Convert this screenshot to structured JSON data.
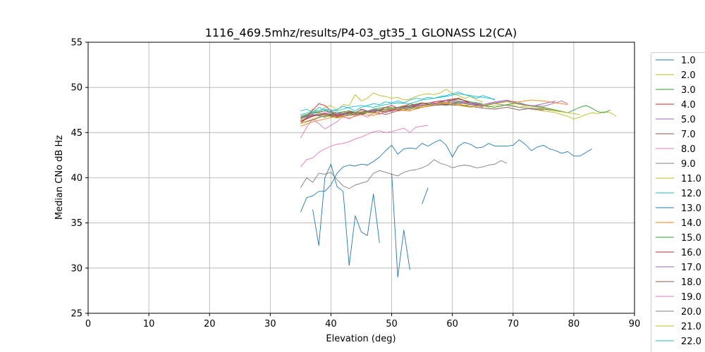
{
  "chart_data": {
    "type": "line",
    "title": "1116_469.5mhz/results/P4-03_gt35_1 GLONASS L2(CA)",
    "xlabel": "Elevation (deg)",
    "ylabel": "Median CNo dB Hz",
    "xlim": [
      0,
      90
    ],
    "ylim": [
      25,
      55
    ],
    "xticks": [
      0,
      10,
      20,
      30,
      40,
      50,
      60,
      70,
      80,
      90
    ],
    "yticks": [
      25,
      30,
      35,
      40,
      45,
      50,
      55
    ],
    "grid": true,
    "legend_position": "right (clipped at bottom)",
    "series": [
      {
        "name": "1.0",
        "color": "#1f77b4",
        "x": [
          35,
          36,
          37,
          38,
          39,
          40,
          41,
          42,
          43,
          44,
          45,
          46,
          47,
          48,
          49,
          50,
          51,
          52,
          53,
          54,
          55,
          56,
          57,
          58,
          59,
          60,
          61,
          62,
          63,
          64,
          65,
          66,
          67,
          68,
          69,
          70,
          71,
          72,
          73,
          74,
          75,
          76,
          77,
          78,
          79,
          80,
          81,
          82,
          83
        ],
        "y": [
          36.2,
          37.8,
          38.0,
          38.5,
          38.5,
          39.2,
          40.5,
          41.2,
          41.4,
          41.3,
          41.5,
          41.4,
          41.8,
          42.3,
          43.0,
          43.6,
          42.6,
          43.2,
          43.3,
          43.2,
          43.8,
          43.5,
          43.9,
          44.2,
          43.6,
          42.3,
          43.5,
          43.9,
          43.7,
          43.3,
          43.4,
          43.8,
          43.5,
          43.5,
          43.5,
          43.6,
          44.2,
          43.7,
          43.0,
          43.4,
          43.6,
          43.2,
          43.0,
          42.7,
          42.9,
          42.4,
          42.4,
          42.8,
          43.2
        ]
      },
      {
        "name": "2.0",
        "color": "#bcbd22",
        "x": [
          35,
          36,
          37,
          38,
          39,
          40,
          41,
          42,
          43,
          44,
          45,
          46,
          47,
          48,
          49,
          50,
          51,
          52,
          53,
          54,
          55,
          56,
          57,
          58,
          59,
          60,
          61,
          62,
          63,
          64,
          65,
          66,
          67,
          68,
          69,
          70,
          71,
          72,
          73,
          74,
          75,
          76,
          77,
          78,
          79,
          80,
          81,
          82,
          83,
          84,
          85,
          86,
          87
        ],
        "y": [
          46.5,
          47.0,
          46.8,
          47.2,
          47.0,
          46.8,
          47.0,
          47.3,
          47.1,
          46.9,
          47.2,
          47.4,
          47.6,
          47.5,
          47.8,
          47.6,
          47.8,
          48.0,
          47.9,
          48.1,
          48.0,
          48.2,
          48.1,
          48.3,
          48.2,
          48.4,
          48.2,
          48.0,
          48.1,
          48.2,
          48.0,
          47.8,
          48.0,
          47.9,
          48.1,
          48.0,
          47.8,
          47.9,
          47.6,
          47.5,
          47.4,
          47.3,
          47.2,
          47.0,
          46.8,
          46.5,
          46.7,
          47.0,
          47.2,
          47.1,
          47.3,
          47.2,
          46.8
        ]
      },
      {
        "name": "3.0",
        "color": "#2ca02c",
        "x": [
          35,
          37,
          39,
          41,
          43,
          45,
          47,
          49,
          51,
          53,
          55,
          57,
          59,
          61,
          63,
          65,
          67,
          69,
          71,
          73,
          75,
          77,
          79,
          81,
          82,
          83,
          84,
          85,
          86
        ],
        "y": [
          46.8,
          47.2,
          47.4,
          47.0,
          47.1,
          47.3,
          47.5,
          47.4,
          47.6,
          47.8,
          48.0,
          48.2,
          48.1,
          48.4,
          48.2,
          48.0,
          47.8,
          48.1,
          48.3,
          47.9,
          47.8,
          47.5,
          47.2,
          47.8,
          48.0,
          47.7,
          47.3,
          47.2,
          47.5
        ]
      },
      {
        "name": "4.0",
        "color": "#d62728",
        "x": [
          35,
          37,
          39,
          41,
          43,
          45,
          47,
          49,
          51,
          53,
          55,
          57,
          59,
          61,
          63,
          65
        ],
        "y": [
          46.2,
          46.8,
          47.1,
          46.9,
          47.3,
          47.2,
          47.5,
          47.3,
          47.7,
          47.9,
          48.0,
          48.2,
          48.6,
          48.8,
          48.3,
          48.0
        ]
      },
      {
        "name": "5.0",
        "color": "#9467bd",
        "x": [
          35,
          37,
          39,
          41,
          43,
          45,
          47,
          49,
          51,
          53,
          55,
          57,
          59,
          61,
          63,
          65,
          67,
          69,
          71,
          73,
          75,
          77,
          78,
          79
        ],
        "y": [
          46.5,
          46.9,
          47.2,
          47.0,
          47.3,
          47.1,
          47.5,
          47.6,
          47.8,
          48.0,
          48.2,
          48.4,
          48.6,
          48.5,
          48.3,
          48.1,
          48.4,
          48.6,
          48.2,
          48.0,
          47.9,
          48.3,
          48.5,
          48.2
        ]
      },
      {
        "name": "7.0",
        "color": "#8c564b",
        "x": [
          35,
          37,
          39,
          41,
          43,
          45,
          47,
          49,
          51,
          53,
          55,
          57,
          59,
          61,
          63,
          65
        ],
        "y": [
          46.0,
          46.4,
          46.9,
          46.7,
          46.9,
          47.1,
          47.3,
          47.0,
          47.4,
          47.6,
          47.8,
          48.0,
          48.1,
          48.3,
          48.1,
          47.9
        ]
      },
      {
        "name": "8.0",
        "color": "#e377c2",
        "x": [
          35,
          36,
          37,
          38,
          39,
          40,
          41,
          42,
          43,
          44,
          45,
          46,
          47,
          48,
          49,
          50,
          51,
          52,
          53,
          54,
          55,
          56
        ],
        "y": [
          41.2,
          42.0,
          42.2,
          42.8,
          43.2,
          43.5,
          43.7,
          43.8,
          44.0,
          44.3,
          44.5,
          44.8,
          45.1,
          45.2,
          45.0,
          45.1,
          45.3,
          45.5,
          45.0,
          45.6,
          45.7,
          45.8
        ]
      },
      {
        "name": "9.0",
        "color": "#7f7f7f",
        "x": [
          35,
          36,
          37,
          38,
          39,
          40,
          41,
          42,
          43,
          44,
          45,
          46,
          47,
          48,
          49,
          50,
          51,
          52,
          53,
          54,
          55,
          56,
          57,
          58,
          59,
          60,
          61,
          62,
          63,
          64,
          65,
          66,
          67,
          68,
          69
        ],
        "y": [
          38.9,
          40.0,
          39.5,
          40.5,
          40.4,
          40.6,
          39.8,
          39.1,
          38.8,
          39.2,
          39.4,
          39.6,
          40.5,
          40.8,
          40.6,
          40.4,
          40.2,
          40.6,
          40.8,
          40.9,
          41.1,
          41.4,
          42.0,
          41.6,
          41.4,
          41.1,
          41.3,
          41.4,
          41.3,
          41.1,
          41.2,
          41.4,
          41.5,
          41.9,
          41.6
        ]
      },
      {
        "name": "11.0",
        "color": "#bcbd22",
        "x": [
          35,
          36,
          37,
          38,
          39,
          40,
          41,
          42,
          43,
          44,
          45,
          46,
          47,
          48,
          49,
          50,
          51,
          52,
          53,
          54,
          55,
          56,
          57,
          58,
          59,
          60,
          61,
          62,
          63,
          64,
          65
        ],
        "y": [
          46.4,
          46.9,
          47.6,
          47.2,
          47.8,
          48.0,
          47.5,
          48.1,
          48.0,
          49.2,
          48.5,
          48.8,
          49.4,
          49.1,
          49.0,
          48.8,
          48.9,
          48.6,
          48.7,
          49.0,
          49.2,
          49.3,
          49.2,
          49.4,
          49.8,
          49.3,
          49.1,
          48.8,
          49.0,
          48.6,
          48.4
        ]
      },
      {
        "name": "12.0",
        "color": "#17becf",
        "x": [
          35,
          36,
          37,
          38,
          39,
          40,
          41,
          42,
          43,
          44,
          45,
          46,
          47,
          48,
          49,
          50,
          51,
          52,
          53,
          54,
          55,
          56,
          57,
          58,
          59,
          60,
          61,
          62,
          63,
          64,
          65,
          66,
          67
        ],
        "y": [
          47.4,
          47.6,
          47.2,
          47.8,
          47.5,
          47.3,
          47.6,
          47.9,
          47.7,
          47.4,
          47.8,
          48.0,
          48.2,
          48.1,
          48.4,
          48.3,
          48.5,
          48.3,
          48.6,
          48.8,
          48.7,
          48.9,
          48.8,
          49.0,
          49.1,
          49.3,
          49.5,
          49.2,
          49.0,
          48.8,
          49.1,
          48.9,
          48.6
        ]
      },
      {
        "name": "13.0",
        "color": "#1f77b4",
        "x": [
          37,
          38,
          39,
          40,
          41,
          42,
          43,
          44,
          45,
          46,
          47,
          48,
          49,
          50,
          51,
          52,
          53,
          54,
          55,
          56,
          57
        ],
        "y": [
          36.5,
          32.5,
          40.0,
          41.5,
          39.0,
          38.5,
          30.3,
          35.8,
          34.0,
          33.6,
          38.2,
          32.8,
          null,
          40.5,
          29.0,
          34.2,
          29.8,
          null,
          37.1,
          38.9,
          null
        ]
      },
      {
        "name": "14.0",
        "color": "#ff7f0e",
        "x": [
          35,
          37,
          39,
          41,
          43,
          45,
          47,
          49,
          51,
          53,
          55,
          57,
          59,
          61,
          63,
          65,
          67,
          69,
          71,
          73,
          75,
          77,
          79
        ],
        "y": [
          45.7,
          46.2,
          46.5,
          46.8,
          46.6,
          47.0,
          46.9,
          47.3,
          47.5,
          47.4,
          47.8,
          48.0,
          48.2,
          48.1,
          47.9,
          48.0,
          48.2,
          48.5,
          48.4,
          48.6,
          48.5,
          48.3,
          48.1
        ]
      },
      {
        "name": "15.0",
        "color": "#2ca02c",
        "x": [
          35,
          37,
          39,
          41,
          43,
          45,
          47,
          49,
          51,
          53,
          55,
          57,
          59,
          61,
          63,
          65
        ],
        "y": [
          46.7,
          47.0,
          46.8,
          47.2,
          47.4,
          47.1,
          47.6,
          47.8,
          47.7,
          48.0,
          48.3,
          48.1,
          48.5,
          48.7,
          48.4,
          48.2
        ]
      },
      {
        "name": "16.0",
        "color": "#d62728",
        "x": [
          35,
          36,
          37,
          38,
          39,
          40,
          41,
          42,
          43,
          44,
          45,
          46,
          47,
          48,
          49,
          50,
          51,
          52,
          53,
          54,
          55,
          56,
          57,
          58,
          59,
          60,
          61,
          62,
          63,
          64,
          65
        ],
        "y": [
          46.0,
          46.6,
          47.5,
          48.2,
          48.0,
          47.4,
          46.8,
          46.9,
          47.3,
          47.1,
          47.6,
          47.4,
          47.2,
          47.5,
          47.8,
          48.0,
          47.7,
          47.9,
          48.2,
          48.0,
          48.3,
          48.1,
          48.4,
          48.5,
          48.3,
          48.6,
          48.8,
          48.5,
          48.2,
          48.0,
          47.8
        ]
      },
      {
        "name": "17.0",
        "color": "#9467bd",
        "x": [
          35,
          37,
          39,
          41,
          43,
          45,
          47,
          49,
          51,
          53,
          55,
          57,
          59,
          61,
          63,
          65,
          67,
          69,
          71,
          73,
          75,
          77
        ],
        "y": [
          46.6,
          47.0,
          46.7,
          47.1,
          46.9,
          47.3,
          47.5,
          47.2,
          47.7,
          47.9,
          48.1,
          48.0,
          48.3,
          48.5,
          48.2,
          48.0,
          48.3,
          48.5,
          48.2,
          47.9,
          48.2,
          48.5
        ]
      },
      {
        "name": "18.0",
        "color": "#8c564b",
        "x": [
          35,
          37,
          39,
          41,
          43,
          45,
          47,
          49,
          51,
          53,
          55,
          57,
          59,
          61,
          63,
          65,
          67,
          69,
          71,
          73,
          75,
          77,
          79
        ],
        "y": [
          46.3,
          46.9,
          47.0,
          46.8,
          47.2,
          47.0,
          47.4,
          47.6,
          47.5,
          47.8,
          48.0,
          48.2,
          48.1,
          48.0,
          47.9,
          47.7,
          47.6,
          47.8,
          47.5,
          47.7,
          47.6,
          47.4,
          47.2
        ]
      },
      {
        "name": "19.0",
        "color": "#e377c2",
        "x": [
          35,
          36,
          37,
          38,
          39,
          40,
          41,
          42,
          43,
          44,
          45,
          46,
          47,
          48,
          49,
          50,
          51,
          52,
          53,
          54,
          55,
          56,
          57,
          58,
          59,
          60,
          61,
          62,
          63,
          64,
          65
        ],
        "y": [
          44.4,
          45.6,
          46.5,
          46.0,
          45.4,
          45.8,
          46.2,
          46.8,
          46.5,
          46.9,
          47.0,
          46.7,
          47.2,
          47.0,
          47.4,
          47.3,
          47.6,
          47.8,
          47.5,
          47.9,
          48.1,
          48.0,
          48.3,
          48.2,
          48.5,
          48.3,
          48.1,
          48.4,
          48.2,
          48.0,
          47.8
        ]
      },
      {
        "name": "20.0",
        "color": "#7f7f7f",
        "x": [
          35,
          37,
          39,
          41,
          43,
          45,
          47,
          49,
          51,
          53,
          55,
          57,
          59,
          61,
          63,
          65,
          67,
          69,
          71,
          73,
          75
        ],
        "y": [
          46.8,
          47.1,
          47.4,
          47.2,
          47.0,
          47.5,
          47.3,
          47.6,
          47.8,
          47.7,
          48.0,
          48.2,
          48.0,
          48.3,
          48.1,
          47.9,
          48.2,
          48.0,
          47.8,
          47.6,
          47.5
        ]
      },
      {
        "name": "21.0",
        "color": "#bcbd22",
        "x": [
          35,
          37,
          39,
          41,
          43,
          45,
          47,
          49,
          51,
          53,
          55,
          57,
          59,
          61,
          63,
          65,
          67,
          69,
          71,
          73,
          75,
          77,
          79,
          81
        ],
        "y": [
          46.0,
          46.5,
          46.9,
          46.6,
          47.0,
          47.3,
          47.1,
          47.5,
          47.7,
          47.6,
          47.9,
          48.1,
          48.3,
          48.0,
          47.8,
          48.0,
          48.2,
          48.4,
          48.1,
          47.9,
          47.7,
          47.4,
          47.2,
          47.0
        ]
      },
      {
        "name": "22.0",
        "color": "#17becf",
        "x": [
          35,
          37,
          39,
          41,
          43,
          45,
          47,
          49,
          51,
          53,
          55,
          57,
          59,
          61,
          63,
          65,
          67
        ],
        "y": [
          47.0,
          47.3,
          47.6,
          47.4,
          47.8,
          48.0,
          47.8,
          48.1,
          48.3,
          48.2,
          48.6,
          48.8,
          49.0,
          49.3,
          49.1,
          48.9,
          48.7
        ]
      }
    ]
  }
}
